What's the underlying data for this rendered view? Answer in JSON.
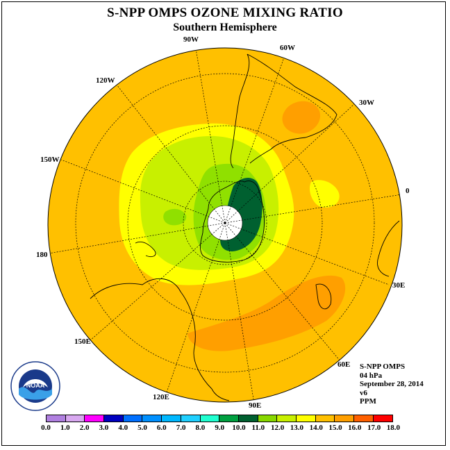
{
  "header": {
    "title": "S-NPP OMPS OZONE MIXING RATIO",
    "subtitle": "Southern Hemisphere"
  },
  "map": {
    "projection": "south polar stereographic",
    "longitude_labels": [
      "0",
      "30E",
      "60E",
      "90E",
      "120E",
      "150E",
      "180",
      "150W",
      "120W",
      "90W",
      "60W",
      "30W"
    ],
    "fill_colors": {
      "background_band": "#ffc000",
      "yellow_band": "#ffff00",
      "lightgreen_band": "#c8f000",
      "green_band": "#90e000",
      "darkgreen_band": "#006030",
      "orange_band": "#ff9f00",
      "pole_mask": "#ffffff"
    }
  },
  "info": {
    "line1": "S-NPP OMPS",
    "line2": "04 hPa",
    "line3": "September 28, 2014",
    "line4": "v6",
    "line5": "PPM"
  },
  "colorbar": {
    "ticks": [
      "0.0",
      "1.0",
      "2.0",
      "3.0",
      "4.0",
      "5.0",
      "6.0",
      "7.0",
      "8.0",
      "9.0",
      "10.0",
      "11.0",
      "12.0",
      "13.0",
      "14.0",
      "15.0",
      "16.0",
      "17.0",
      "18.0"
    ],
    "colors": [
      "#b080e0",
      "#d8a8f0",
      "#ff00ff",
      "#0000c0",
      "#0070ff",
      "#0090ff",
      "#00b8ff",
      "#20d0ff",
      "#20ffd0",
      "#00a040",
      "#006030",
      "#88d800",
      "#c8f000",
      "#ffff00",
      "#ffc000",
      "#ff9f00",
      "#ff6000",
      "#ff0000",
      "#8b5a2b"
    ]
  },
  "logo": {
    "text": "NOAA",
    "ring_text_top": "NATIONAL OCEANIC AND ATMOSPHERIC ADMINISTRATION",
    "ring_text_bottom": "U.S. DEPARTMENT OF COMMERCE"
  }
}
